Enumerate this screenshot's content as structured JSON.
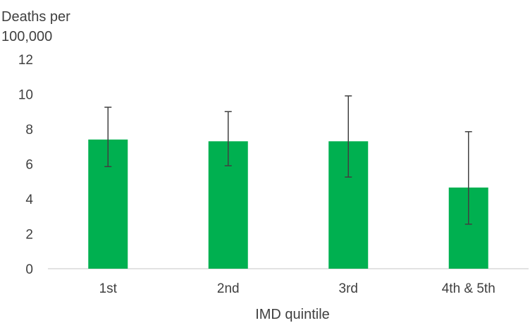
{
  "chart_data": {
    "type": "bar",
    "title": "",
    "ylabel": "Deaths per 100,000",
    "xlabel": "IMD quintile",
    "categories": [
      "1st",
      "2nd",
      "3rd",
      "4th & 5th"
    ],
    "values": [
      7.4,
      7.3,
      7.3,
      4.65
    ],
    "error_low": [
      5.85,
      5.9,
      5.25,
      2.55
    ],
    "error_high": [
      9.25,
      9.0,
      9.9,
      7.85
    ],
    "ylim": [
      0,
      12
    ],
    "yticks": [
      "0",
      "2",
      "4",
      "6",
      "8",
      "10",
      "12"
    ],
    "grid": false,
    "bar_color": "#00b050",
    "error_color": "#404040"
  }
}
